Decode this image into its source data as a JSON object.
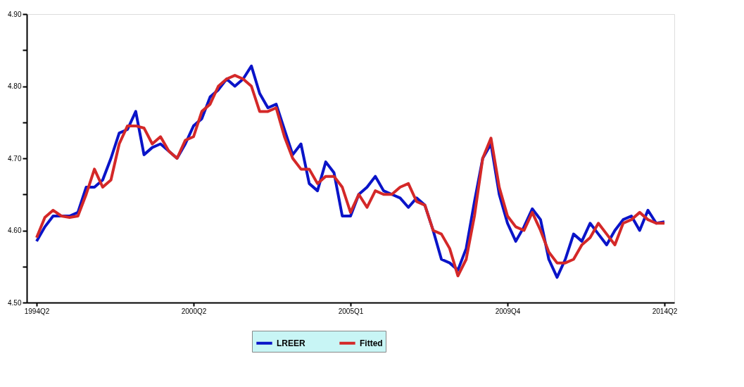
{
  "chart_data": {
    "type": "line",
    "categories": [
      "1994Q2",
      null,
      null,
      null,
      null,
      null,
      null,
      null,
      null,
      null,
      null,
      null,
      null,
      null,
      null,
      null,
      null,
      null,
      null,
      "2000Q2",
      null,
      null,
      null,
      null,
      null,
      null,
      null,
      null,
      null,
      null,
      null,
      null,
      null,
      null,
      null,
      null,
      null,
      null,
      "2005Q1",
      null,
      null,
      null,
      null,
      null,
      null,
      null,
      null,
      null,
      null,
      null,
      null,
      null,
      null,
      null,
      null,
      null,
      null,
      "2009Q4",
      null,
      null,
      null,
      null,
      null,
      null,
      null,
      null,
      null,
      null,
      null,
      null,
      null,
      null,
      null,
      null,
      null,
      null,
      "2014Q2"
    ],
    "series": [
      {
        "name": "LREER",
        "color": "#0a14c8",
        "values": [
          4.585,
          4.605,
          4.62,
          4.62,
          4.62,
          4.625,
          4.66,
          4.66,
          4.67,
          4.7,
          4.735,
          4.74,
          4.765,
          4.705,
          4.715,
          4.72,
          4.71,
          4.7,
          4.72,
          4.745,
          4.755,
          4.785,
          4.795,
          4.81,
          4.8,
          4.81,
          4.828,
          4.79,
          4.77,
          4.775,
          4.74,
          4.705,
          4.72,
          4.665,
          4.655,
          4.695,
          4.68,
          4.62,
          4.62,
          4.65,
          4.66,
          4.675,
          4.655,
          4.65,
          4.645,
          4.632,
          4.645,
          4.635,
          4.6,
          4.56,
          4.555,
          4.545,
          4.575,
          4.64,
          4.7,
          4.72,
          4.65,
          4.61,
          4.585,
          4.605,
          4.63,
          4.615,
          4.56,
          4.535,
          4.56,
          4.595,
          4.585,
          4.61,
          4.595,
          4.58,
          4.6,
          4.615,
          4.62,
          4.6,
          4.628,
          4.61,
          4.612
        ]
      },
      {
        "name": "Fitted",
        "color": "#d42828",
        "values": [
          4.59,
          4.618,
          4.628,
          4.62,
          4.618,
          4.62,
          4.65,
          4.685,
          4.66,
          4.67,
          4.72,
          4.745,
          4.745,
          4.742,
          4.72,
          4.73,
          4.71,
          4.7,
          4.725,
          4.73,
          4.765,
          4.775,
          4.8,
          4.81,
          4.815,
          4.81,
          4.8,
          4.765,
          4.765,
          4.77,
          4.73,
          4.7,
          4.685,
          4.685,
          4.665,
          4.675,
          4.675,
          4.66,
          4.625,
          4.65,
          4.632,
          4.655,
          4.65,
          4.65,
          4.66,
          4.665,
          4.64,
          4.635,
          4.6,
          4.595,
          4.575,
          4.537,
          4.56,
          4.62,
          4.7,
          4.728,
          4.66,
          4.62,
          4.605,
          4.6,
          4.625,
          4.6,
          4.57,
          4.555,
          4.555,
          4.56,
          4.58,
          4.59,
          4.61,
          4.595,
          4.58,
          4.61,
          4.615,
          4.625,
          4.615,
          4.61,
          4.61
        ]
      }
    ],
    "ylim": [
      4.5,
      4.9
    ],
    "yticks": [
      {
        "value": 4.5,
        "label": "4.50"
      },
      {
        "value": 4.55,
        "label": null
      },
      {
        "value": 4.6,
        "label": "4.60"
      },
      {
        "value": 4.65,
        "label": null
      },
      {
        "value": 4.7,
        "label": "4.70"
      },
      {
        "value": 4.75,
        "label": null
      },
      {
        "value": 4.8,
        "label": "4.80"
      },
      {
        "value": 4.85,
        "label": null
      },
      {
        "value": 4.9,
        "label": "4.90"
      }
    ],
    "grid": false,
    "legend": "bottom",
    "line_style": "solid",
    "marker": "none"
  }
}
